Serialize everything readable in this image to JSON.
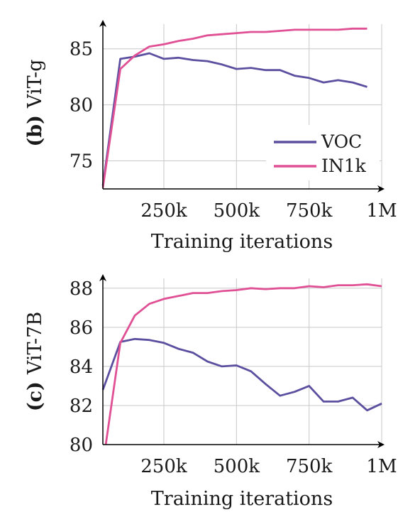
{
  "chart_data": [
    {
      "type": "line",
      "row_label_prefix": "(b)",
      "row_label": "ViT-g",
      "xlabel": "Training iterations",
      "xlim": [
        40000,
        1000000
      ],
      "ylim": [
        72.5,
        87.2
      ],
      "xticks": [
        250000,
        500000,
        750000,
        1000000
      ],
      "xtick_labels": [
        "250k",
        "500k",
        "750k",
        "1M"
      ],
      "yticks": [
        75,
        80,
        85
      ],
      "ytick_labels": [
        "75",
        "80",
        "85"
      ],
      "grid": true,
      "legend_position": "bottom-right",
      "series": [
        {
          "name": "VOC",
          "color": "#5b4fa0",
          "x": [
            40000,
            100000,
            150000,
            200000,
            250000,
            300000,
            350000,
            400000,
            450000,
            500000,
            550000,
            600000,
            650000,
            700000,
            750000,
            800000,
            850000,
            900000,
            950000
          ],
          "y": [
            72.8,
            84.1,
            84.3,
            84.6,
            84.1,
            84.2,
            84.0,
            83.9,
            83.6,
            83.2,
            83.3,
            83.1,
            83.1,
            82.6,
            82.4,
            82.0,
            82.2,
            82.0,
            81.6
          ]
        },
        {
          "name": "IN1k",
          "color": "#e05095",
          "x": [
            40000,
            100000,
            150000,
            200000,
            250000,
            300000,
            350000,
            400000,
            450000,
            500000,
            550000,
            600000,
            650000,
            700000,
            750000,
            800000,
            850000,
            900000,
            950000
          ],
          "y": [
            72.6,
            83.2,
            84.4,
            85.2,
            85.4,
            85.7,
            85.9,
            86.2,
            86.3,
            86.4,
            86.5,
            86.5,
            86.6,
            86.7,
            86.7,
            86.7,
            86.7,
            86.8,
            86.8
          ]
        }
      ]
    },
    {
      "type": "line",
      "row_label_prefix": "(c)",
      "row_label": "ViT-7B",
      "xlabel": "Training iterations",
      "xlim": [
        40000,
        1000000
      ],
      "ylim": [
        80,
        88.5
      ],
      "xticks": [
        250000,
        500000,
        750000,
        1000000
      ],
      "xtick_labels": [
        "250k",
        "500k",
        "750k",
        "1M"
      ],
      "yticks": [
        80,
        82,
        84,
        86,
        88
      ],
      "ytick_labels": [
        "80",
        "82",
        "84",
        "86",
        "88"
      ],
      "grid": true,
      "series": [
        {
          "name": "VOC",
          "color": "#5b4fa0",
          "x": [
            40000,
            100000,
            150000,
            200000,
            250000,
            300000,
            350000,
            400000,
            450000,
            500000,
            550000,
            600000,
            650000,
            700000,
            750000,
            800000,
            850000,
            900000,
            950000,
            1000000
          ],
          "y": [
            82.8,
            85.25,
            85.4,
            85.35,
            85.2,
            84.9,
            84.7,
            84.25,
            84.0,
            84.05,
            83.75,
            83.1,
            82.5,
            82.7,
            83.0,
            82.2,
            82.2,
            82.4,
            81.75,
            82.1
          ]
        },
        {
          "name": "IN1k",
          "color": "#e05095",
          "x": [
            50000,
            100000,
            150000,
            200000,
            250000,
            300000,
            350000,
            400000,
            450000,
            500000,
            550000,
            600000,
            650000,
            700000,
            750000,
            800000,
            850000,
            900000,
            950000,
            1000000
          ],
          "y": [
            80.0,
            85.2,
            86.6,
            87.2,
            87.45,
            87.6,
            87.75,
            87.75,
            87.85,
            87.9,
            88.0,
            87.95,
            88.0,
            88.0,
            88.1,
            88.05,
            88.15,
            88.15,
            88.2,
            88.1
          ]
        }
      ]
    }
  ]
}
